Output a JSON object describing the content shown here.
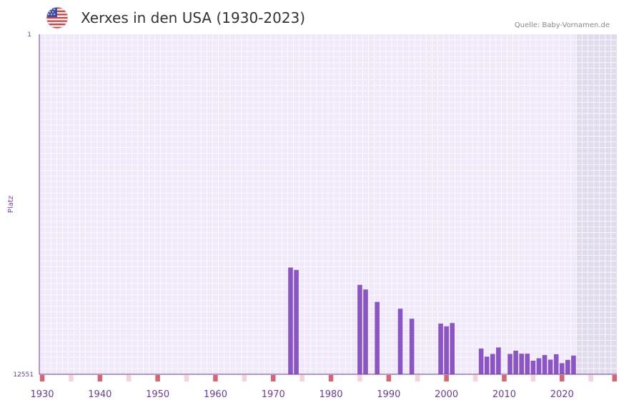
{
  "header": {
    "title": "Xerxes in den USA (1930-2023)",
    "source": "Quelle: Baby-Vornamen.de",
    "flag_icon": "us-flag-icon"
  },
  "colors": {
    "bar": "#8b55c8",
    "plot_bg": "#efe9fa",
    "shade": "#e1dced",
    "grid": "#ffffff",
    "axis": "#6a3d9a",
    "marker_strong": "#d9636e",
    "marker_light": "#f6d3d8"
  },
  "chart_data": {
    "type": "bar",
    "title": "Xerxes in den USA (1930-2023)",
    "xlabel": "",
    "ylabel": "Platz",
    "x_range": [
      1929.5,
      2029.5
    ],
    "y_range_labels": [
      "1",
      "12551"
    ],
    "ylim": [
      1,
      12551
    ],
    "y_inverted": true,
    "x_ticks": [
      1930,
      1940,
      1950,
      1960,
      1970,
      1980,
      1990,
      2000,
      2010,
      2020
    ],
    "shaded_from_year": 2022.5,
    "series": [
      {
        "name": "Xerxes",
        "years": [
          1973,
          1974,
          1985,
          1986,
          1988,
          1992,
          1994,
          1999,
          2000,
          2001,
          2006,
          2007,
          2008,
          2009,
          2011,
          2012,
          2013,
          2014,
          2015,
          2016,
          2017,
          2018,
          2019,
          2020,
          2021,
          2022
        ],
        "ranks": [
          8610,
          8700,
          9250,
          9420,
          9880,
          10130,
          10500,
          10680,
          10780,
          10660,
          11600,
          11900,
          11800,
          11560,
          11800,
          11680,
          11790,
          11790,
          12050,
          11960,
          11840,
          12010,
          11810,
          12140,
          12020,
          11860
        ]
      }
    ],
    "bottom_markers_strong": [
      1930,
      1940,
      1950,
      1960,
      1970,
      1980,
      1990,
      2000,
      2010,
      2020,
      2030
    ],
    "bottom_markers_light": [
      1935,
      1945,
      1955,
      1965,
      1975,
      1985,
      1995,
      2005,
      2015,
      2025
    ]
  }
}
